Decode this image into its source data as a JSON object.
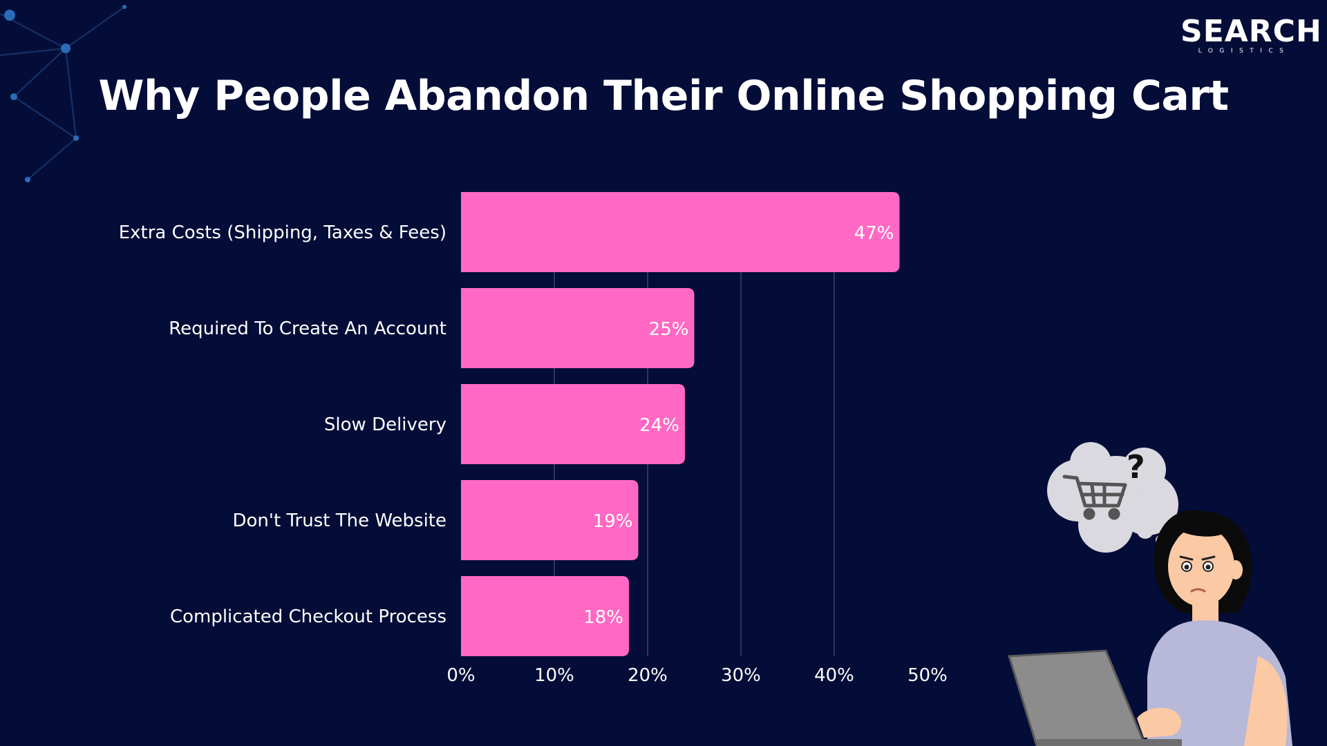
{
  "logo": {
    "word": "SEARCH",
    "sub": "LOGISTICS"
  },
  "title": "Why People Abandon Their Online Shopping Cart",
  "colors": {
    "background": "#040d38",
    "bar": "#ff69c3",
    "text": "#ffffff",
    "grid": "#3a4270"
  },
  "chart_data": {
    "type": "bar",
    "orientation": "horizontal",
    "title": "Why People Abandon Their Online Shopping Cart",
    "categories": [
      "Extra Costs (Shipping, Taxes & Fees)",
      "Required To Create An Account",
      "Slow Delivery",
      "Don't Trust The Website",
      "Complicated Checkout Process"
    ],
    "values": [
      47,
      25,
      24,
      19,
      18
    ],
    "value_labels": [
      "47%",
      "25%",
      "24%",
      "19%",
      "18%"
    ],
    "xlim": [
      0,
      50
    ],
    "ticks": [
      0,
      10,
      20,
      30,
      40,
      50
    ],
    "tick_labels": [
      "0%",
      "10%",
      "20%",
      "30%",
      "40%",
      "50%"
    ],
    "grid": true,
    "legend": "none"
  },
  "illustration": {
    "cart_icon": "shopping-cart-icon",
    "question_mark": "?"
  }
}
